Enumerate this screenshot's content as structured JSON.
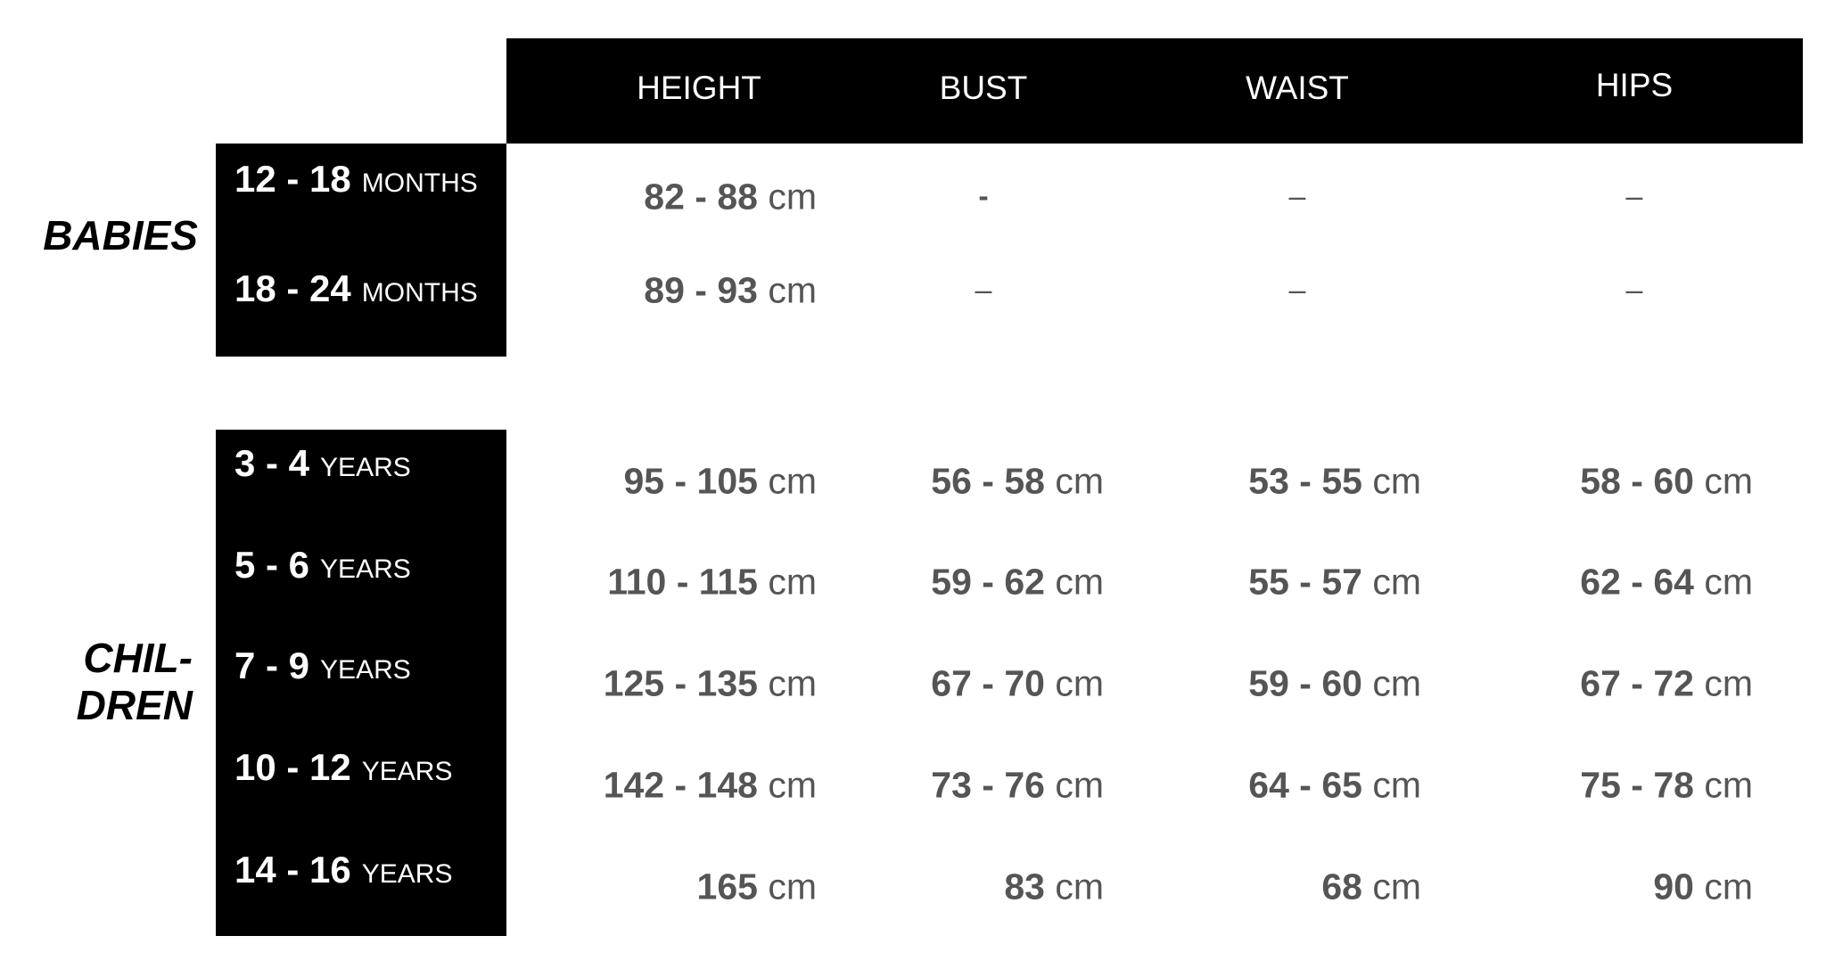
{
  "columns": [
    "HEIGHT",
    "BUST",
    "WAIST",
    "HIPS"
  ],
  "groups": [
    {
      "label": "BABIES",
      "rows": [
        {
          "age": "12 - 18",
          "unit": "MONTHS",
          "height": "82 - 88",
          "bust": "-",
          "waist": "–",
          "hips": "–"
        },
        {
          "age": "18 - 24",
          "unit": "MONTHS",
          "height": "89 - 93",
          "bust": "–",
          "waist": "–",
          "hips": "–"
        }
      ]
    },
    {
      "label_line1": "CHIL-",
      "label_line2": "DREN",
      "rows": [
        {
          "age": "3 - 4",
          "unit": "YEARS",
          "height": "95 - 105",
          "bust": "56 - 58",
          "waist": "53 - 55",
          "hips": "58 - 60"
        },
        {
          "age": "5 - 6",
          "unit": "YEARS",
          "height": "110 - 115",
          "bust": "59 - 62",
          "waist": "55 - 57",
          "hips": "62 - 64"
        },
        {
          "age": "7 - 9",
          "unit": "YEARS",
          "height": "125 - 135",
          "bust": "67 - 70",
          "waist": "59 - 60",
          "hips": "67 - 72"
        },
        {
          "age": "10 - 12",
          "unit": "YEARS",
          "height": "142 - 148",
          "bust": "73 - 76",
          "waist": "64 - 65",
          "hips": "75 - 78"
        },
        {
          "age": "14 - 16",
          "unit": "YEARS",
          "height": "165",
          "bust": "83",
          "waist": "68",
          "hips": "90"
        }
      ]
    }
  ],
  "unit_cm": "cm"
}
